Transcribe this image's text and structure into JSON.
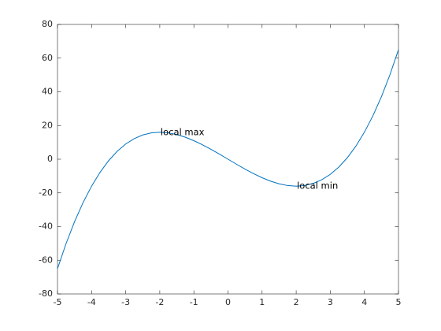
{
  "chart_data": {
    "type": "line",
    "x": [
      -5,
      -4.75,
      -4.5,
      -4.25,
      -4,
      -3.75,
      -3.5,
      -3.25,
      -3,
      -2.75,
      -2.5,
      -2.25,
      -2,
      -1.75,
      -1.5,
      -1.25,
      -1,
      -0.75,
      -0.5,
      -0.25,
      0,
      0.25,
      0.5,
      0.75,
      1,
      1.25,
      1.5,
      1.75,
      2,
      2.25,
      2.5,
      2.75,
      3,
      3.25,
      3.5,
      3.75,
      4,
      4.25,
      4.5,
      4.75,
      5
    ],
    "series": [
      {
        "color": "#0072BD",
        "values": [
          -65,
          -50.171875,
          -37.125,
          -25.765625,
          -16,
          -7.734375,
          -0.875,
          4.671875,
          9,
          12.203125,
          14.375,
          15.609375,
          16,
          15.640625,
          14.625,
          13.046875,
          11,
          8.578125,
          5.875,
          2.984375,
          0,
          -2.984375,
          -5.875,
          -8.578125,
          -11,
          -13.046875,
          -14.625,
          -15.640625,
          -16,
          -15.609375,
          -14.375,
          -12.203125,
          -9,
          -4.671875,
          0.875,
          7.734375,
          16,
          25.765625,
          37.125,
          50.171875,
          65
        ]
      }
    ],
    "xlim": [
      -5,
      5
    ],
    "xticks": [
      -5,
      -4,
      -3,
      -2,
      -1,
      0,
      1,
      2,
      3,
      4,
      5
    ],
    "ylim": [
      -80,
      80
    ],
    "yticks": [
      -80,
      -60,
      -40,
      -20,
      0,
      20,
      40,
      60,
      80
    ],
    "annotations": [
      {
        "text": "local max",
        "x": -2,
        "y": 16
      },
      {
        "text": "local min",
        "x": 2,
        "y": -16
      }
    ]
  }
}
